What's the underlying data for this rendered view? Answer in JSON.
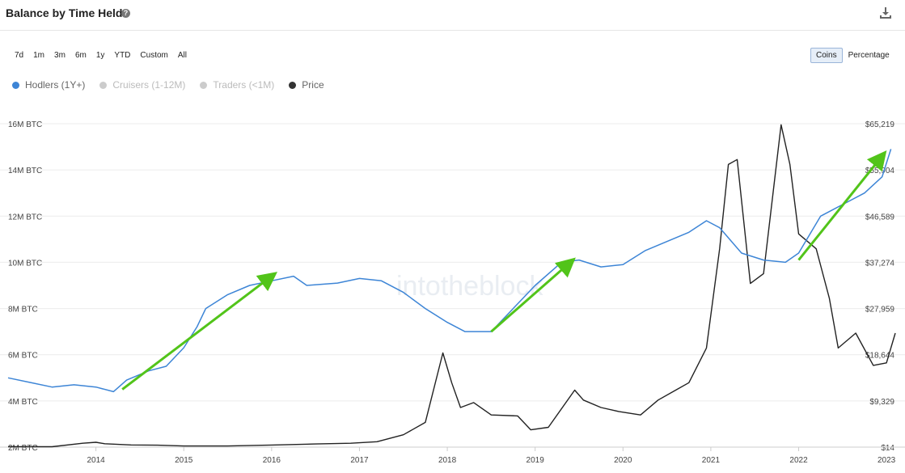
{
  "header": {
    "title": "Balance by Time Held",
    "help_icon": "question-circle-icon",
    "download_icon": "download-icon"
  },
  "time_ranges": [
    "7d",
    "1m",
    "3m",
    "6m",
    "1y",
    "YTD",
    "Custom",
    "All"
  ],
  "view_toggle": {
    "options": [
      "Coins",
      "Percentage"
    ],
    "selected": "Coins"
  },
  "legend": [
    {
      "label": "Hodlers (1Y+)",
      "color": "#3d85d6",
      "active": true
    },
    {
      "label": "Cruisers (1-12M)",
      "color": "#cccccc",
      "active": false
    },
    {
      "label": "Traders (<1M)",
      "color": "#cccccc",
      "active": false
    },
    {
      "label": "Price",
      "color": "#333333",
      "active": true
    }
  ],
  "watermark": "intotheblock",
  "chart_data": {
    "type": "line",
    "title": "",
    "xlabel": "",
    "ylabel_left": "",
    "ylabel_right": "",
    "x_ticks": [
      "2014",
      "2015",
      "2016",
      "2017",
      "2018",
      "2019",
      "2020",
      "2021",
      "2022",
      "2023"
    ],
    "x_range": [
      2013.0,
      2023.1
    ],
    "left_axis": {
      "ticks": [
        "16M BTC",
        "14M BTC",
        "12M BTC",
        "10M BTC",
        "8M BTC",
        "6M BTC",
        "4M BTC",
        "2M BTC"
      ],
      "range_millions": [
        2,
        16
      ]
    },
    "right_axis": {
      "ticks": [
        "$65,219",
        "$55,904",
        "$46,589",
        "$37,274",
        "$27,959",
        "$18,644",
        "$9,329",
        "$14"
      ],
      "range_usd": [
        14,
        65219
      ]
    },
    "grid": "horizontal",
    "series": [
      {
        "name": "Hodlers (1Y+)",
        "axis": "left",
        "color": "#3d85d6",
        "points": [
          [
            2013.0,
            5.0
          ],
          [
            2013.25,
            4.8
          ],
          [
            2013.5,
            4.6
          ],
          [
            2013.75,
            4.7
          ],
          [
            2014.0,
            4.6
          ],
          [
            2014.2,
            4.4
          ],
          [
            2014.35,
            4.9
          ],
          [
            2014.6,
            5.3
          ],
          [
            2014.8,
            5.5
          ],
          [
            2015.0,
            6.3
          ],
          [
            2015.15,
            7.2
          ],
          [
            2015.25,
            8.0
          ],
          [
            2015.5,
            8.6
          ],
          [
            2015.75,
            9.0
          ],
          [
            2016.0,
            9.2
          ],
          [
            2016.25,
            9.4
          ],
          [
            2016.4,
            9.0
          ],
          [
            2016.75,
            9.1
          ],
          [
            2017.0,
            9.3
          ],
          [
            2017.25,
            9.2
          ],
          [
            2017.5,
            8.7
          ],
          [
            2017.75,
            8.0
          ],
          [
            2018.0,
            7.4
          ],
          [
            2018.2,
            7.0
          ],
          [
            2018.5,
            7.0
          ],
          [
            2018.75,
            8.0
          ],
          [
            2019.0,
            9.0
          ],
          [
            2019.3,
            10.0
          ],
          [
            2019.5,
            10.1
          ],
          [
            2019.75,
            9.8
          ],
          [
            2020.0,
            9.9
          ],
          [
            2020.25,
            10.5
          ],
          [
            2020.5,
            10.9
          ],
          [
            2020.75,
            11.3
          ],
          [
            2020.95,
            11.8
          ],
          [
            2021.1,
            11.5
          ],
          [
            2021.35,
            10.4
          ],
          [
            2021.6,
            10.1
          ],
          [
            2021.85,
            10.0
          ],
          [
            2022.0,
            10.4
          ],
          [
            2022.25,
            12.0
          ],
          [
            2022.5,
            12.5
          ],
          [
            2022.75,
            13.0
          ],
          [
            2022.95,
            13.7
          ],
          [
            2023.05,
            14.9
          ]
        ]
      },
      {
        "name": "Price",
        "axis": "right",
        "color": "#222222",
        "points": [
          [
            2013.0,
            100
          ],
          [
            2013.5,
            100
          ],
          [
            2013.85,
            800
          ],
          [
            2014.0,
            1000
          ],
          [
            2014.1,
            700
          ],
          [
            2014.4,
            450
          ],
          [
            2014.7,
            400
          ],
          [
            2015.0,
            250
          ],
          [
            2015.5,
            250
          ],
          [
            2016.0,
            430
          ],
          [
            2016.5,
            650
          ],
          [
            2016.9,
            800
          ],
          [
            2017.2,
            1100
          ],
          [
            2017.5,
            2500
          ],
          [
            2017.75,
            5000
          ],
          [
            2017.95,
            19000
          ],
          [
            2018.05,
            13000
          ],
          [
            2018.15,
            8000
          ],
          [
            2018.3,
            9000
          ],
          [
            2018.5,
            6500
          ],
          [
            2018.8,
            6300
          ],
          [
            2018.95,
            3500
          ],
          [
            2019.15,
            4000
          ],
          [
            2019.45,
            11500
          ],
          [
            2019.55,
            9500
          ],
          [
            2019.75,
            8000
          ],
          [
            2019.95,
            7200
          ],
          [
            2020.2,
            6500
          ],
          [
            2020.4,
            9500
          ],
          [
            2020.6,
            11500
          ],
          [
            2020.75,
            13000
          ],
          [
            2020.95,
            20000
          ],
          [
            2021.1,
            40000
          ],
          [
            2021.2,
            57000
          ],
          [
            2021.3,
            58000
          ],
          [
            2021.45,
            33000
          ],
          [
            2021.6,
            35000
          ],
          [
            2021.8,
            65000
          ],
          [
            2021.9,
            57000
          ],
          [
            2022.0,
            43000
          ],
          [
            2022.2,
            40000
          ],
          [
            2022.35,
            30000
          ],
          [
            2022.45,
            20000
          ],
          [
            2022.65,
            23000
          ],
          [
            2022.85,
            16500
          ],
          [
            2023.0,
            17000
          ],
          [
            2023.1,
            23000
          ]
        ]
      }
    ],
    "annotations": [
      {
        "type": "arrow",
        "color": "#52c41a",
        "from": [
          2014.3,
          4.5
        ],
        "to": [
          2016.0,
          9.4
        ]
      },
      {
        "type": "arrow",
        "color": "#52c41a",
        "from": [
          2018.5,
          7.0
        ],
        "to": [
          2019.4,
          10.0
        ]
      },
      {
        "type": "arrow",
        "color": "#52c41a",
        "from": [
          2022.0,
          10.1
        ],
        "to": [
          2022.95,
          14.6
        ]
      }
    ]
  }
}
